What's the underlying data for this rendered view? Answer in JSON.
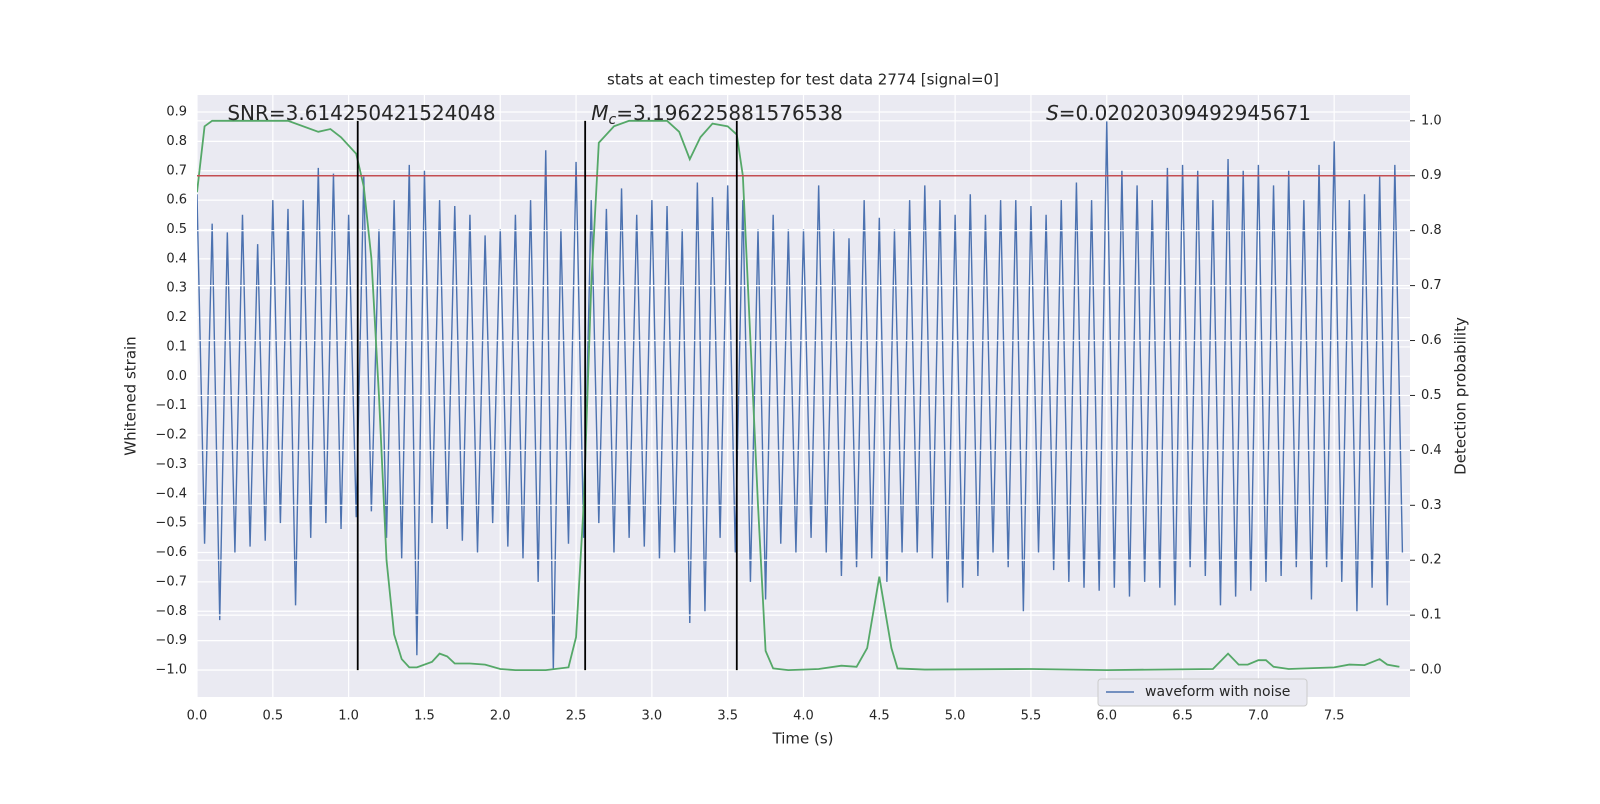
{
  "chart_data": {
    "type": "line",
    "title": "stats at each timestep for test data 2774 [signal=0]",
    "xlabel": "Time (s)",
    "ylabel": "Whitened strain",
    "y2label": "Detection probability",
    "xlim": [
      0,
      8
    ],
    "ylim": [
      -1.092,
      0.958
    ],
    "y2lim": [
      -0.049,
      1.047
    ],
    "xticks": [
      {
        "value": 0,
        "label": "0.0"
      },
      0.5,
      {
        "value": 1,
        "label": "1.0"
      },
      1.5,
      {
        "value": 2,
        "label": "2.0"
      },
      2.5,
      {
        "value": 3,
        "label": "3.0"
      },
      3.5,
      {
        "value": 4,
        "label": "4.0"
      },
      4.5,
      {
        "value": 5,
        "label": "5.0"
      },
      5.5,
      {
        "value": 6,
        "label": "6.0"
      },
      6.5,
      {
        "value": 7,
        "label": "7.0"
      },
      7.5
    ],
    "yticks": [
      {
        "value": -1,
        "label": "−1.0"
      },
      {
        "value": -0.9,
        "label": "−0.9"
      },
      {
        "value": -0.8,
        "label": "−0.8"
      },
      {
        "value": -0.7,
        "label": "−0.7"
      },
      {
        "value": -0.6,
        "label": "−0.6"
      },
      {
        "value": -0.5,
        "label": "−0.5"
      },
      {
        "value": -0.4,
        "label": "−0.4"
      },
      {
        "value": -0.3,
        "label": "−0.3"
      },
      {
        "value": -0.2,
        "label": "−0.2"
      },
      {
        "value": -0.1,
        "label": "−0.1"
      },
      {
        "value": 0,
        "label": "0.0"
      },
      0.1,
      0.2,
      0.3,
      0.4,
      0.5,
      0.6,
      0.7,
      0.8,
      0.9
    ],
    "y2ticks": [
      {
        "value": 0,
        "label": "0.0"
      },
      0.1,
      0.2,
      0.3,
      0.4,
      0.5,
      0.6,
      0.7,
      0.8,
      0.9,
      {
        "value": 1,
        "label": "1.0"
      }
    ],
    "grid": true,
    "legend": "lower right",
    "series": [
      {
        "name": "waveform with noise",
        "color": "#4c72b0",
        "x": [
          0,
          0.05,
          0.1,
          0.15,
          0.2,
          0.25,
          0.3,
          0.35,
          0.4,
          0.45,
          0.5,
          0.55,
          0.6,
          0.65,
          0.7,
          0.75,
          0.8,
          0.85,
          0.9,
          0.95,
          1,
          1.05,
          1.1,
          1.15,
          1.2,
          1.25,
          1.3,
          1.35,
          1.4,
          1.45,
          1.5,
          1.55,
          1.6,
          1.65,
          1.7,
          1.75,
          1.8,
          1.85,
          1.9,
          1.95,
          2,
          2.05,
          2.1,
          2.15,
          2.2,
          2.25,
          2.3,
          2.35,
          2.4,
          2.45,
          2.5,
          2.55,
          2.6,
          2.65,
          2.7,
          2.75,
          2.8,
          2.85,
          2.9,
          2.95,
          3,
          3.05,
          3.1,
          3.15,
          3.2,
          3.25,
          3.3,
          3.35,
          3.4,
          3.45,
          3.5,
          3.55,
          3.6,
          3.65,
          3.7,
          3.75,
          3.8,
          3.85,
          3.9,
          3.95,
          4,
          4.05,
          4.1,
          4.15,
          4.2,
          4.25,
          4.3,
          4.35,
          4.4,
          4.45,
          4.5,
          4.55,
          4.6,
          4.65,
          4.7,
          4.75,
          4.8,
          4.85,
          4.9,
          4.95,
          5,
          5.05,
          5.1,
          5.15,
          5.2,
          5.25,
          5.3,
          5.35,
          5.4,
          5.45,
          5.5,
          5.55,
          5.6,
          5.65,
          5.7,
          5.75,
          5.8,
          5.85,
          5.9,
          5.95,
          6,
          6.05,
          6.1,
          6.15,
          6.2,
          6.25,
          6.3,
          6.35,
          6.4,
          6.45,
          6.5,
          6.55,
          6.6,
          6.65,
          6.7,
          6.75,
          6.8,
          6.85,
          6.9,
          6.95,
          7,
          7.05,
          7.1,
          7.15,
          7.2,
          7.25,
          7.3,
          7.35,
          7.4,
          7.45,
          7.5,
          7.55,
          7.6,
          7.65,
          7.7,
          7.75,
          7.8,
          7.85,
          7.9,
          7.95
        ],
        "values": [
          0.62,
          -0.57,
          0.52,
          -0.83,
          0.49,
          -0.6,
          0.55,
          -0.58,
          0.45,
          -0.56,
          0.6,
          -0.5,
          0.57,
          -0.78,
          0.6,
          -0.55,
          0.71,
          -0.5,
          0.69,
          -0.52,
          0.55,
          -0.48,
          0.68,
          -0.46,
          0.5,
          -0.55,
          0.6,
          -0.62,
          0.72,
          -0.95,
          0.7,
          -0.5,
          0.6,
          -0.52,
          0.58,
          -0.56,
          0.55,
          -0.6,
          0.48,
          -0.5,
          0.5,
          -0.58,
          0.55,
          -0.62,
          0.6,
          -0.7,
          0.77,
          -1.0,
          0.5,
          -0.57,
          0.73,
          -0.55,
          0.6,
          -0.5,
          0.57,
          -0.6,
          0.64,
          -0.55,
          0.55,
          -0.58,
          0.6,
          -0.62,
          0.58,
          -0.6,
          0.5,
          -0.84,
          0.66,
          -0.8,
          0.61,
          -0.55,
          0.65,
          -0.6,
          0.6,
          -0.7,
          0.5,
          -0.76,
          0.55,
          -0.57,
          0.5,
          -0.6,
          0.5,
          -0.55,
          0.65,
          -0.6,
          0.5,
          -0.68,
          0.47,
          -0.65,
          0.6,
          -0.62,
          0.54,
          -0.7,
          0.5,
          -0.6,
          0.6,
          -0.6,
          0.65,
          -0.62,
          0.6,
          -0.77,
          0.55,
          -0.72,
          0.62,
          -0.68,
          0.55,
          -0.6,
          0.6,
          -0.65,
          0.6,
          -0.8,
          0.58,
          -0.6,
          0.55,
          -0.66,
          0.6,
          -0.7,
          0.66,
          -0.72,
          0.6,
          -0.73,
          0.87,
          -0.72,
          0.7,
          -0.75,
          0.65,
          -0.7,
          0.6,
          -0.72,
          0.71,
          -0.78,
          0.72,
          -0.65,
          0.7,
          -0.68,
          0.6,
          -0.78,
          0.74,
          -0.75,
          0.7,
          -0.73,
          0.72,
          -0.7,
          0.65,
          -0.68,
          0.7,
          -0.65,
          0.6,
          -0.76,
          0.72,
          -0.65,
          0.8,
          -0.7,
          0.6,
          -0.8,
          0.62,
          -0.72,
          0.68,
          -0.78,
          0.72,
          -0.6
        ]
      },
      {
        "color": "#55a868",
        "axis": "y2",
        "x": [
          0,
          0.05,
          0.1,
          0.6,
          0.8,
          0.88,
          0.95,
          1.05,
          1.1,
          1.15,
          1.2,
          1.25,
          1.3,
          1.35,
          1.4,
          1.45,
          1.55,
          1.6,
          1.65,
          1.7,
          1.8,
          1.9,
          2.0,
          2.1,
          2.3,
          2.45,
          2.5,
          2.55,
          2.6,
          2.65,
          2.75,
          2.85,
          3.1,
          3.18,
          3.25,
          3.32,
          3.4,
          3.5,
          3.56,
          3.6,
          3.65,
          3.7,
          3.75,
          3.8,
          3.9,
          4.1,
          4.25,
          4.35,
          4.42,
          4.5,
          4.58,
          4.62,
          4.8,
          5.5,
          6.0,
          6.7,
          6.8,
          6.87,
          6.93,
          7.0,
          7.05,
          7.1,
          7.2,
          7.5,
          7.6,
          7.7,
          7.8,
          7.85,
          7.93
        ],
        "values": [
          0.87,
          0.99,
          1.0,
          1.0,
          0.98,
          0.985,
          0.97,
          0.94,
          0.88,
          0.75,
          0.5,
          0.2,
          0.065,
          0.02,
          0.005,
          0.005,
          0.015,
          0.03,
          0.025,
          0.012,
          0.012,
          0.01,
          0.002,
          0.0,
          0.0,
          0.005,
          0.06,
          0.3,
          0.7,
          0.96,
          0.99,
          1.0,
          1.0,
          0.98,
          0.93,
          0.97,
          0.995,
          0.99,
          0.975,
          0.9,
          0.6,
          0.3,
          0.035,
          0.003,
          0.0,
          0.002,
          0.008,
          0.006,
          0.04,
          0.17,
          0.04,
          0.003,
          0.001,
          0.002,
          0.0,
          0.002,
          0.03,
          0.01,
          0.01,
          0.018,
          0.018,
          0.006,
          0.002,
          0.005,
          0.01,
          0.009,
          0.02,
          0.01,
          0.006
        ]
      }
    ],
    "hline": {
      "value": 0.9,
      "axis": "y2",
      "color": "#c44e52"
    },
    "vlines": {
      "x": [
        1.06,
        2.56,
        3.56
      ],
      "span": [
        0,
        1
      ],
      "axis": "y2",
      "color": "#000000"
    },
    "annotations": [
      {
        "symbol": "SNR",
        "text": "=3.614250421524048",
        "x": 0.2
      },
      {
        "symbol": "M",
        "sub": "c",
        "text": "=3.196225881576538",
        "x": 2.6
      },
      {
        "symbol": "S",
        "text": "=0.02020309492945671",
        "x": 5.6
      }
    ]
  }
}
